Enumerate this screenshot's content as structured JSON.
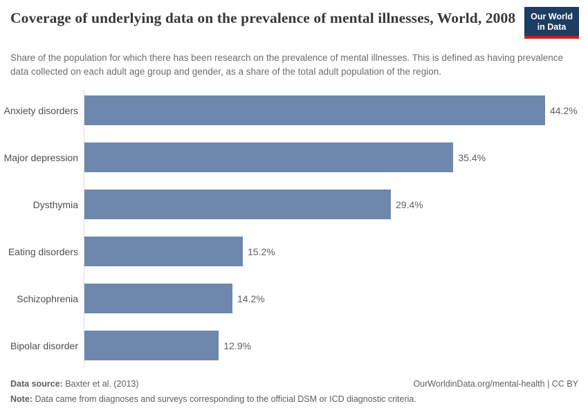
{
  "header": {
    "title": "Coverage of underlying data on the prevalence of mental illnesses, World, 2008",
    "subtitle": "Share of the population for which there has been research on the prevalence of mental illnesses. This is defined as having prevalence data collected on each adult age group and gender, as a share of the total adult population of the region.",
    "logo_line1": "Our World",
    "logo_line2": "in Data"
  },
  "chart_data": {
    "type": "bar",
    "orientation": "horizontal",
    "title": "Coverage of underlying data on the prevalence of mental illnesses, World, 2008",
    "categories": [
      "Anxiety disorders",
      "Major depression",
      "Dysthymia",
      "Eating disorders",
      "Schizophrenia",
      "Bipolar disorder"
    ],
    "values": [
      44.2,
      35.4,
      29.4,
      15.2,
      14.2,
      12.9
    ],
    "value_labels": [
      "44.2%",
      "35.4%",
      "29.4%",
      "15.2%",
      "14.2%",
      "12.9%"
    ],
    "unit": "%",
    "xlabel": "",
    "ylabel": "",
    "xlim": [
      0,
      44.2
    ],
    "grid": false,
    "legend": false,
    "bar_color": "#6e87ad"
  },
  "footer": {
    "data_source_label": "Data source:",
    "data_source_value": "Baxter et al. (2013)",
    "attribution": "OurWorldinData.org/mental-health | CC BY",
    "note_label": "Note:",
    "note_value": "Data came from diagnoses and surveys corresponding to the official DSM or ICD diagnostic criteria."
  },
  "colors": {
    "bar": "#6e87ad",
    "axis_line": "#dcdcdc",
    "title_text": "#383838",
    "subtitle_text": "#6d6d6d",
    "logo_background": "#1d3d63",
    "logo_underline": "#cc2016"
  }
}
